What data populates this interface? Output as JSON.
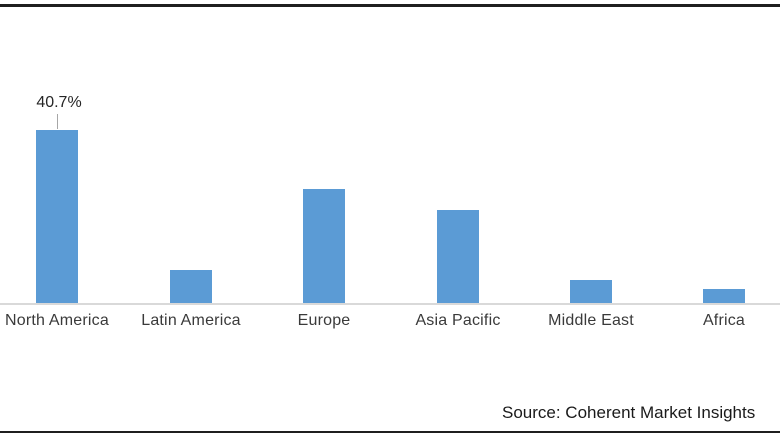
{
  "frame": {
    "source_label": "Source: Coherent Market Insights"
  },
  "chart_data": {
    "type": "bar",
    "title": "",
    "xlabel": "",
    "ylabel": "",
    "categories": [
      "North America",
      "Latin America",
      "Europe",
      "Asia Pacific",
      "Middle East",
      "Africa"
    ],
    "values": [
      40.7,
      7.8,
      26.8,
      21.9,
      5.4,
      3.3
    ],
    "data_labels": [
      "40.7%",
      "",
      "",
      "",
      "",
      ""
    ],
    "ylim": [
      0,
      45
    ],
    "grid": false,
    "legend": false,
    "bar_color": "#5B9BD5",
    "axis_line_color": "#D9D9D9",
    "leader_line_color": "#A6A6A6"
  }
}
